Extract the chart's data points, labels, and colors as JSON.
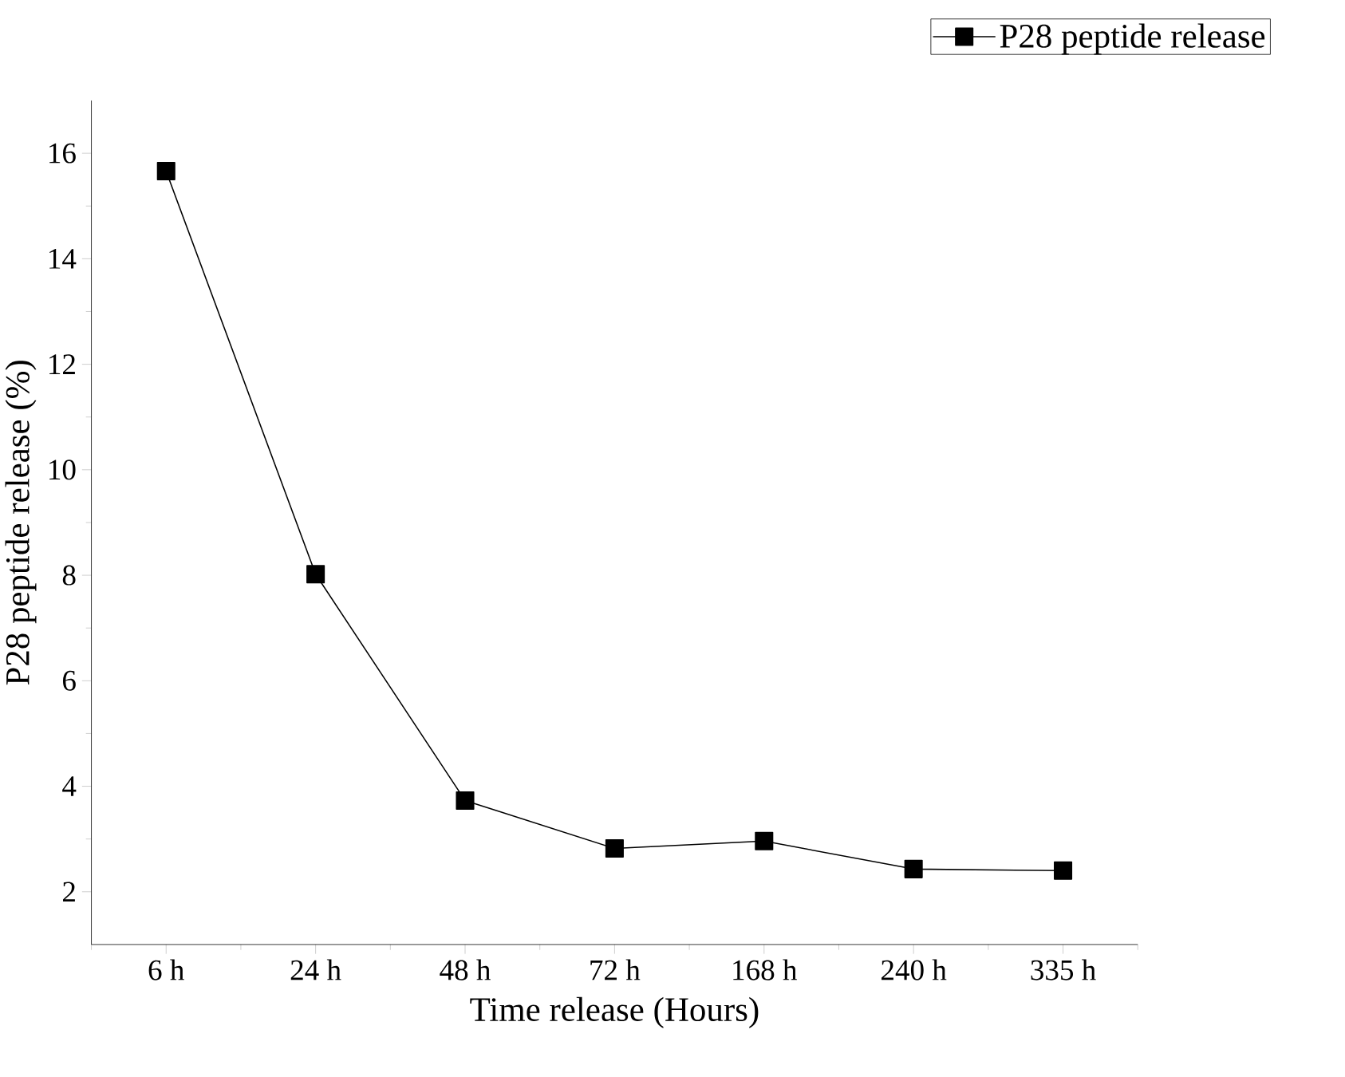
{
  "chart_data": {
    "type": "line",
    "xlabel": "Time release (Hours)",
    "ylabel": "P28 peptide release (%)",
    "categories": [
      "6 h",
      "24 h",
      "48 h",
      "72 h",
      "168 h",
      "240 h",
      "335 h"
    ],
    "series": [
      {
        "name": "P28 peptide release",
        "color": "#000000",
        "values": [
          15.66,
          8.02,
          3.73,
          2.82,
          2.96,
          2.43,
          2.4
        ]
      }
    ],
    "ylim": [
      1,
      17
    ],
    "yticks": [
      2,
      4,
      6,
      8,
      10,
      12,
      14,
      16
    ],
    "legend": "top right",
    "marker": "square",
    "line_style": "solid"
  }
}
